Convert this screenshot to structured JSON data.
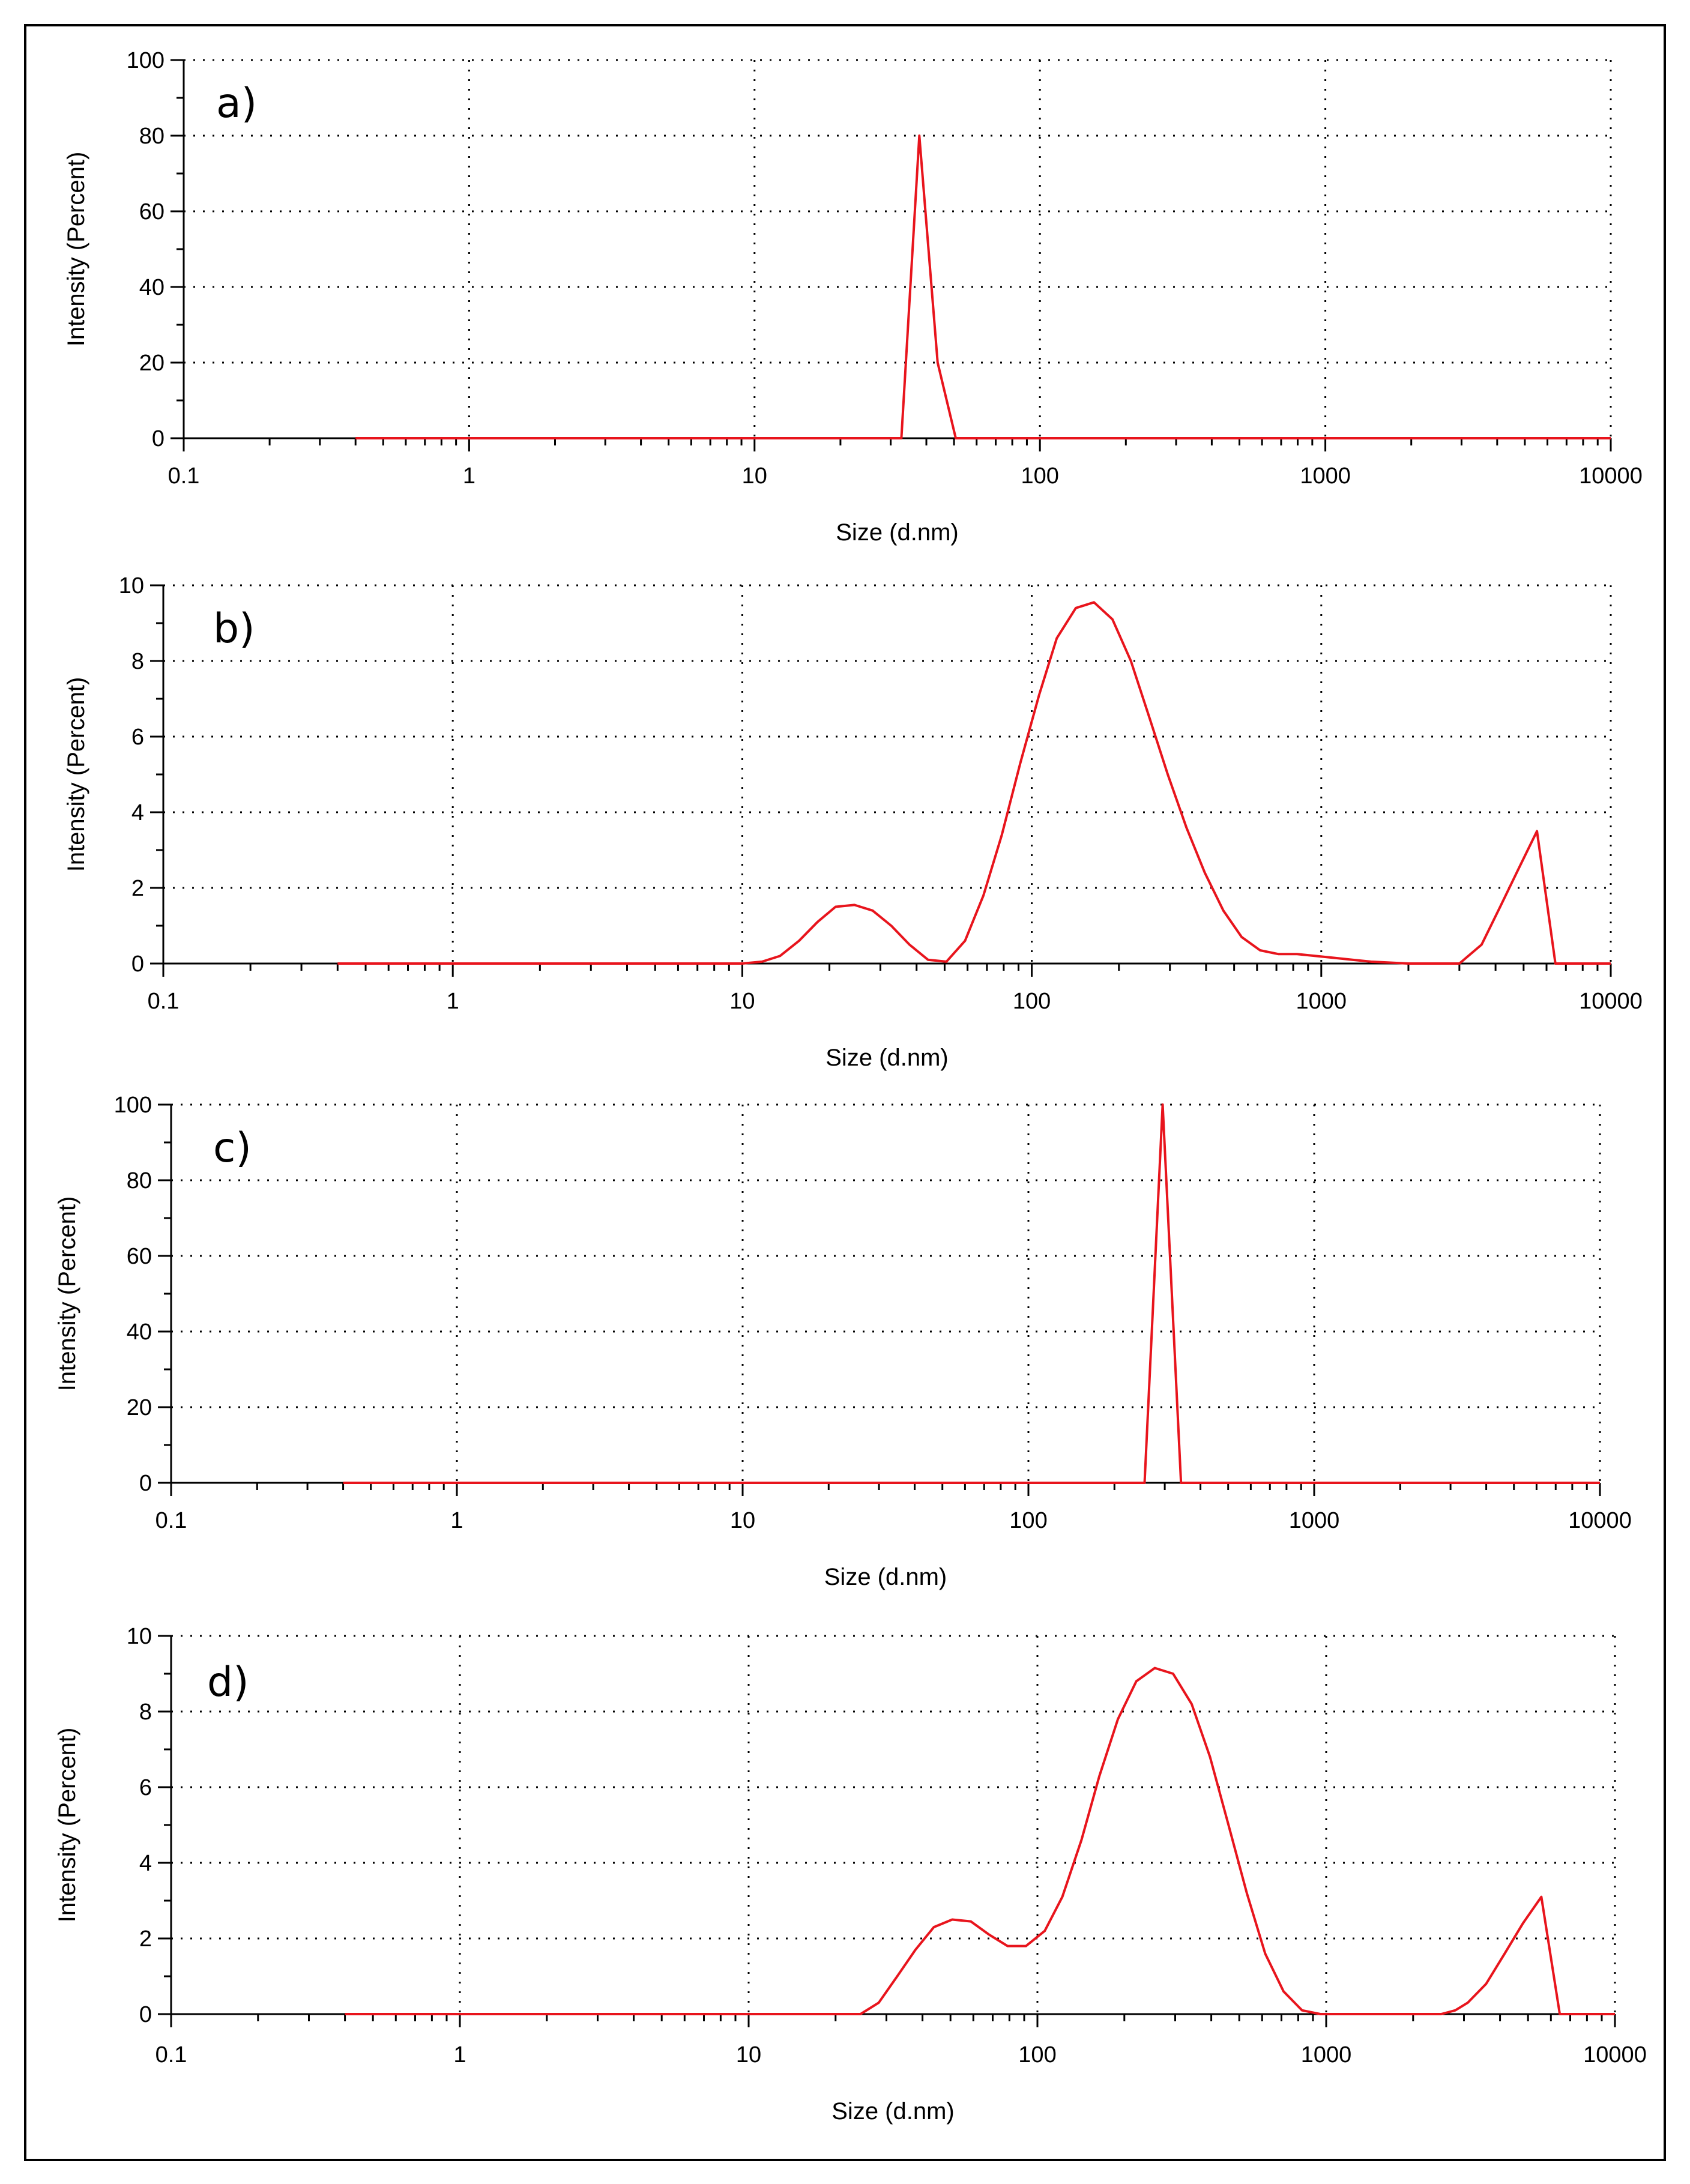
{
  "chart_data": [
    {
      "type": "line",
      "panel_label": "a)",
      "xlabel": "Size (d.nm)",
      "ylabel": "Intensity (Percent)",
      "xscale": "log",
      "xlim": [
        0.1,
        10000
      ],
      "ylim": [
        0,
        100
      ],
      "xticks": [
        0.1,
        1,
        10,
        100,
        1000,
        10000
      ],
      "xtick_labels": [
        "0.1",
        "1",
        "10",
        "100",
        "1000",
        "10000"
      ],
      "yticks": [
        0,
        20,
        40,
        60,
        80,
        100
      ],
      "ytick_labels": [
        "0",
        "20",
        "40",
        "60",
        "80",
        "100"
      ],
      "grid": true,
      "series": [
        {
          "name": "Intensity",
          "color": "#e8141c",
          "x": [
            0.4,
            32,
            32.7,
            37.8,
            43.8,
            50.7,
            10000
          ],
          "y": [
            0,
            0,
            0,
            80,
            20,
            0,
            0
          ]
        }
      ]
    },
    {
      "type": "line",
      "panel_label": "b)",
      "xlabel": "Size (d.nm)",
      "ylabel": "Intensity (Percent)",
      "xscale": "log",
      "xlim": [
        0.1,
        10000
      ],
      "ylim": [
        0,
        10
      ],
      "xticks": [
        0.1,
        1,
        10,
        100,
        1000,
        10000
      ],
      "xtick_labels": [
        "0.1",
        "1",
        "10",
        "100",
        "1000",
        "10000"
      ],
      "yticks": [
        0,
        2,
        4,
        6,
        8,
        10
      ],
      "ytick_labels": [
        "0",
        "2",
        "4",
        "6",
        "8",
        "10"
      ],
      "grid": true,
      "series": [
        {
          "name": "Intensity",
          "color": "#e8141c",
          "x": [
            0.4,
            10,
            11.7,
            13.5,
            15.7,
            18.2,
            21,
            24.4,
            28.2,
            32.7,
            37.8,
            43.8,
            50.7,
            58.8,
            68.1,
            78.8,
            91.3,
            106,
            122,
            142,
            164,
            190,
            220,
            255,
            295,
            342,
            396,
            459,
            531,
            615,
            712,
            825,
            955,
            1106,
            1281,
            1484,
            2000,
            2700,
            3000,
            3580,
            4150,
            4800,
            5560,
            6440,
            10000
          ],
          "y": [
            0,
            0,
            0.05,
            0.2,
            0.6,
            1.1,
            1.5,
            1.55,
            1.4,
            1.0,
            0.5,
            0.1,
            0.05,
            0.6,
            1.8,
            3.4,
            5.3,
            7.1,
            8.6,
            9.4,
            9.55,
            9.1,
            8.0,
            6.5,
            5.0,
            3.6,
            2.4,
            1.4,
            0.7,
            0.35,
            0.25,
            0.25,
            0.2,
            0.15,
            0.1,
            0.05,
            0,
            0,
            0,
            0.5,
            1.5,
            2.5,
            3.5,
            0,
            0
          ]
        }
      ]
    },
    {
      "type": "line",
      "panel_label": "c)",
      "xlabel": "Size (d.nm)",
      "ylabel": "Intensity (Percent)",
      "xscale": "log",
      "xlim": [
        0.1,
        10000
      ],
      "ylim": [
        0,
        100
      ],
      "xticks": [
        0.1,
        1,
        10,
        100,
        1000,
        10000
      ],
      "xtick_labels": [
        "0.1",
        "1",
        "10",
        "100",
        "1000",
        "10000"
      ],
      "yticks": [
        0,
        20,
        40,
        60,
        80,
        100
      ],
      "ytick_labels": [
        "0",
        "20",
        "40",
        "60",
        "80",
        "100"
      ],
      "grid": true,
      "series": [
        {
          "name": "Intensity",
          "color": "#e8141c",
          "x": [
            0.4,
            250,
            255,
            295,
            342,
            10000
          ],
          "y": [
            0,
            0,
            0,
            100,
            0,
            0
          ]
        }
      ]
    },
    {
      "type": "line",
      "panel_label": "d)",
      "xlabel": "Size (d.nm)",
      "ylabel": "Intensity (Percent)",
      "xscale": "log",
      "xlim": [
        0.1,
        10000
      ],
      "ylim": [
        0,
        10
      ],
      "xticks": [
        0.1,
        1,
        10,
        100,
        1000,
        10000
      ],
      "xtick_labels": [
        "0.1",
        "1",
        "10",
        "100",
        "1000",
        "10000"
      ],
      "yticks": [
        0,
        2,
        4,
        6,
        8,
        10
      ],
      "ytick_labels": [
        "0",
        "2",
        "4",
        "6",
        "8",
        "10"
      ],
      "grid": true,
      "series": [
        {
          "name": "Intensity",
          "color": "#e8141c",
          "x": [
            0.4,
            24.4,
            28.2,
            32.7,
            37.8,
            43.8,
            50.7,
            58.8,
            68.1,
            78.8,
            91.3,
            106,
            122,
            142,
            164,
            190,
            220,
            255,
            295,
            342,
            396,
            459,
            531,
            615,
            712,
            825,
            955,
            2500,
            2800,
            3090,
            3580,
            4150,
            4800,
            5560,
            6440,
            10000
          ],
          "y": [
            0,
            0,
            0.3,
            1.0,
            1.7,
            2.3,
            2.5,
            2.45,
            2.1,
            1.8,
            1.8,
            2.2,
            3.1,
            4.6,
            6.3,
            7.8,
            8.8,
            9.15,
            9.0,
            8.2,
            6.8,
            5.0,
            3.2,
            1.6,
            0.6,
            0.1,
            0,
            0,
            0.1,
            0.3,
            0.8,
            1.6,
            2.4,
            3.1,
            0,
            0
          ]
        }
      ]
    }
  ]
}
